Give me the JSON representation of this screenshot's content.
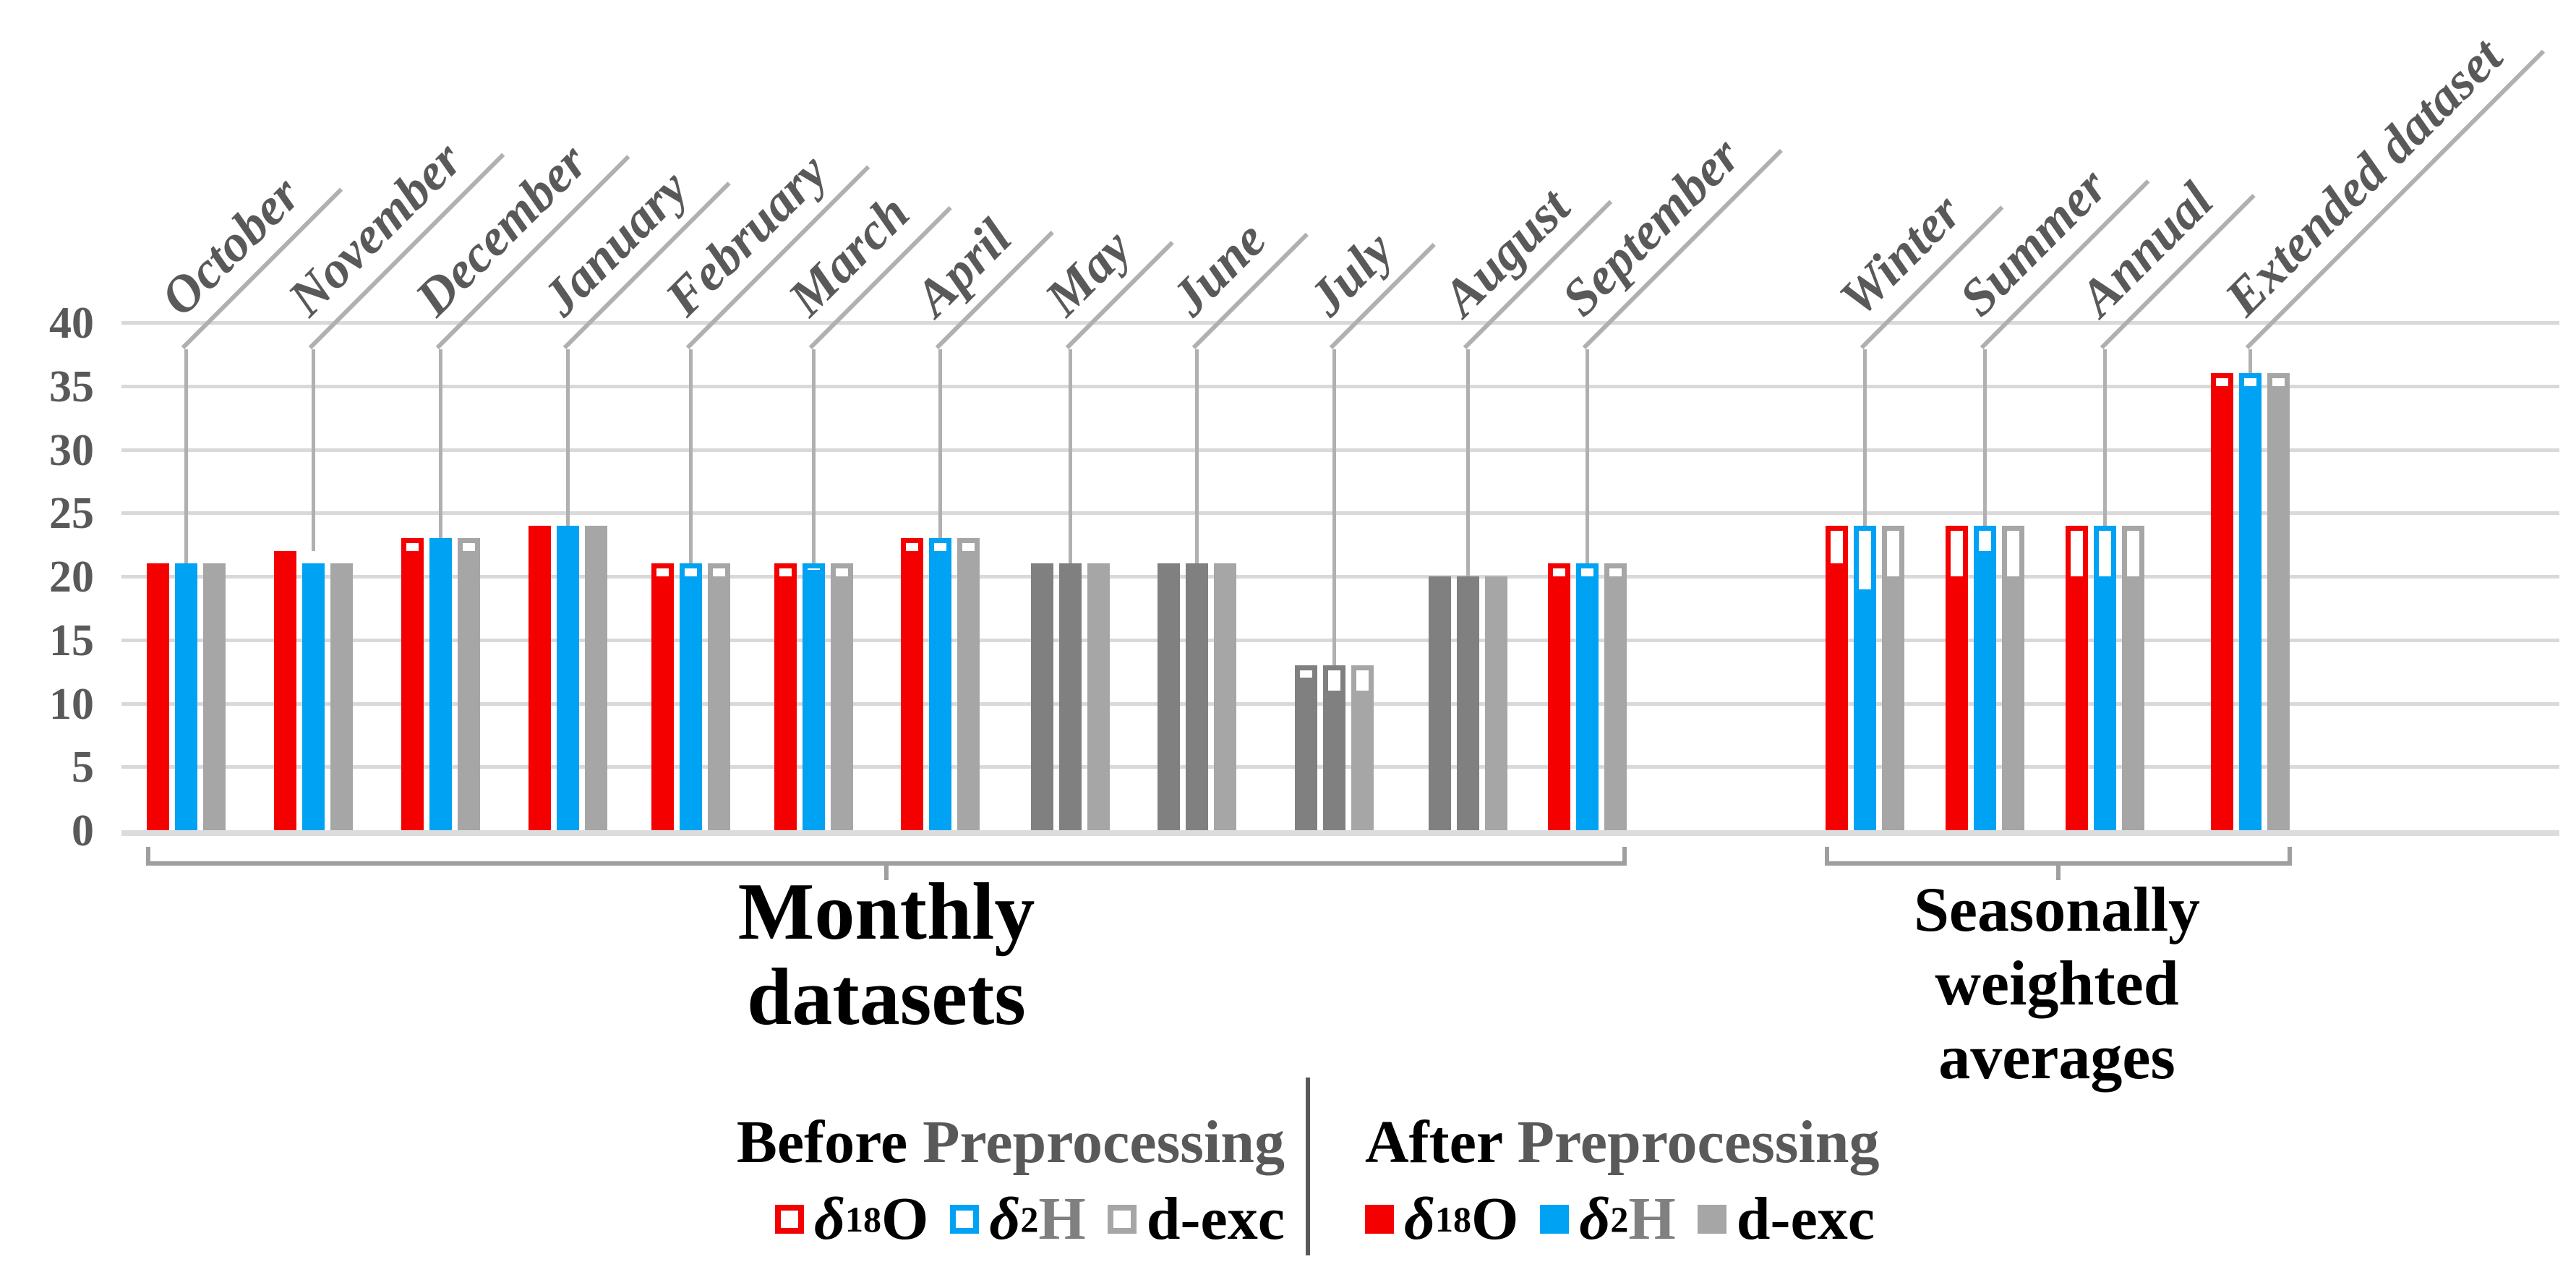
{
  "chart_data": {
    "type": "bar",
    "title": "",
    "xlabel": "",
    "ylabel": "",
    "ylim": [
      0,
      40
    ],
    "yticks": [
      0,
      5,
      10,
      15,
      20,
      25,
      30,
      35,
      40
    ],
    "grid": "horizontal",
    "legend_position": "bottom",
    "series_names": [
      "δ18O",
      "δ2H",
      "d-exc"
    ],
    "bar_semantics": "outline = Before Preprocessing, fill = After Preprocessing; gray-muted groups are months shown without red/blue coloring",
    "groups": [
      {
        "label": "October",
        "section": "monthly",
        "muted": false,
        "bars": [
          {
            "series": "d18O",
            "before": 21,
            "after": 21
          },
          {
            "series": "d2H",
            "before": 21,
            "after": 21
          },
          {
            "series": "d-exc",
            "before": 21,
            "after": 21
          }
        ]
      },
      {
        "label": "November",
        "section": "monthly",
        "muted": false,
        "bars": [
          {
            "series": "d18O",
            "before": 22,
            "after": 22
          },
          {
            "series": "d2H",
            "before": 21,
            "after": 21
          },
          {
            "series": "d-exc",
            "before": 21,
            "after": 21
          }
        ]
      },
      {
        "label": "December",
        "section": "monthly",
        "muted": false,
        "bars": [
          {
            "series": "d18O",
            "before": 23,
            "after": 22
          },
          {
            "series": "d2H",
            "before": 23,
            "after": 23
          },
          {
            "series": "d-exc",
            "before": 23,
            "after": 22
          }
        ]
      },
      {
        "label": "January",
        "section": "monthly",
        "muted": false,
        "bars": [
          {
            "series": "d18O",
            "before": 24,
            "after": 24
          },
          {
            "series": "d2H",
            "before": 24,
            "after": 24
          },
          {
            "series": "d-exc",
            "before": 24,
            "after": 24
          }
        ]
      },
      {
        "label": "February",
        "section": "monthly",
        "muted": false,
        "bars": [
          {
            "series": "d18O",
            "before": 21,
            "after": 20
          },
          {
            "series": "d2H",
            "before": 21,
            "after": 20
          },
          {
            "series": "d-exc",
            "before": 21,
            "after": 20
          }
        ]
      },
      {
        "label": "March",
        "section": "monthly",
        "muted": false,
        "bars": [
          {
            "series": "d18O",
            "before": 21,
            "after": 20
          },
          {
            "series": "d2H",
            "before": 21,
            "after": 20.5
          },
          {
            "series": "d-exc",
            "before": 21,
            "after": 20
          }
        ]
      },
      {
        "label": "April",
        "section": "monthly",
        "muted": false,
        "bars": [
          {
            "series": "d18O",
            "before": 23,
            "after": 22
          },
          {
            "series": "d2H",
            "before": 23,
            "after": 22
          },
          {
            "series": "d-exc",
            "before": 23,
            "after": 22
          }
        ]
      },
      {
        "label": "May",
        "section": "monthly",
        "muted": true,
        "bars": [
          {
            "series": "d18O",
            "before": 21,
            "after": 21
          },
          {
            "series": "d2H",
            "before": 21,
            "after": 21
          },
          {
            "series": "d-exc",
            "before": 21,
            "after": 21
          }
        ]
      },
      {
        "label": "June",
        "section": "monthly",
        "muted": true,
        "bars": [
          {
            "series": "d18O",
            "before": 21,
            "after": 21
          },
          {
            "series": "d2H",
            "before": 21,
            "after": 21
          },
          {
            "series": "d-exc",
            "before": 21,
            "after": 21
          }
        ]
      },
      {
        "label": "July",
        "section": "monthly",
        "muted": true,
        "bars": [
          {
            "series": "d18O",
            "before": 13,
            "after": 12
          },
          {
            "series": "d2H",
            "before": 13,
            "after": 11
          },
          {
            "series": "d-exc",
            "before": 13,
            "after": 11
          }
        ]
      },
      {
        "label": "August",
        "section": "monthly",
        "muted": true,
        "bars": [
          {
            "series": "d18O",
            "before": 20,
            "after": 20
          },
          {
            "series": "d2H",
            "before": 20,
            "after": 20
          },
          {
            "series": "d-exc",
            "before": 20,
            "after": 20
          }
        ]
      },
      {
        "label": "September",
        "section": "monthly",
        "muted": false,
        "bars": [
          {
            "series": "d18O",
            "before": 21,
            "after": 20
          },
          {
            "series": "d2H",
            "before": 21,
            "after": 20
          },
          {
            "series": "d-exc",
            "before": 21,
            "after": 20
          }
        ]
      },
      {
        "label": "Winter",
        "section": "seasonal",
        "muted": false,
        "bars": [
          {
            "series": "d18O",
            "before": 24,
            "after": 21
          },
          {
            "series": "d2H",
            "before": 24,
            "after": 19
          },
          {
            "series": "d-exc",
            "before": 24,
            "after": 20
          }
        ]
      },
      {
        "label": "Summer",
        "section": "seasonal",
        "muted": false,
        "bars": [
          {
            "series": "d18O",
            "before": 24,
            "after": 20
          },
          {
            "series": "d2H",
            "before": 24,
            "after": 22
          },
          {
            "series": "d-exc",
            "before": 24,
            "after": 20
          }
        ]
      },
      {
        "label": "Annual",
        "section": "seasonal",
        "muted": false,
        "bars": [
          {
            "series": "d18O",
            "before": 24,
            "after": 20
          },
          {
            "series": "d2H",
            "before": 24,
            "after": 20
          },
          {
            "series": "d-exc",
            "before": 24,
            "after": 20
          }
        ]
      },
      {
        "label": "Extended dataset",
        "section": "seasonal",
        "muted": false,
        "bars": [
          {
            "series": "d18O",
            "before": 36,
            "after": 35
          },
          {
            "series": "d2H",
            "before": 36,
            "after": 35
          },
          {
            "series": "d-exc",
            "before": 36,
            "after": 35
          }
        ]
      }
    ],
    "sections": [
      {
        "label_lines": [
          "Monthly datasets"
        ],
        "from": "October",
        "to": "September"
      },
      {
        "label_lines": [
          "Seasonally",
          "weighted",
          "averages"
        ],
        "from": "Winter",
        "to": "Extended dataset"
      }
    ]
  },
  "legend": {
    "before": {
      "title_strong": "Before",
      "title_muted": "Preprocessing",
      "items": [
        {
          "swatch": "red-outline",
          "delta": "δ",
          "sup": "18",
          "symbol": "O"
        },
        {
          "swatch": "blue-outline",
          "delta": "δ",
          "sup": "2",
          "symbol": "H"
        },
        {
          "swatch": "gray-outline",
          "symbol": "d-exc"
        }
      ]
    },
    "after": {
      "title_strong": "After",
      "title_muted": "Preprocessing",
      "items": [
        {
          "swatch": "red-filled",
          "delta": "δ",
          "sup": "18",
          "symbol": "O"
        },
        {
          "swatch": "blue-filled",
          "delta": "δ",
          "sup": "2",
          "symbol": "H"
        },
        {
          "swatch": "gray-filled",
          "symbol": "d-exc"
        }
      ]
    }
  },
  "colors": {
    "red": "#f40000",
    "blue": "#00a2f3",
    "gray": "#a6a6a6",
    "dark_gray": "#808080",
    "axis_text": "#595959",
    "gridline": "#d9d9d9",
    "bracket": "#9f9f9f",
    "leader": "#b0b0b0",
    "text_black": "#000000"
  }
}
